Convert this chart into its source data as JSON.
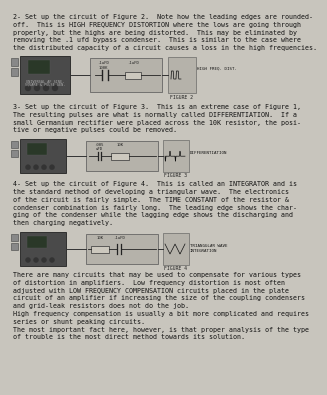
{
  "bg_color": "#c8c5bd",
  "text_color": "#111111",
  "section1_text": [
    "2- Set up the circuit of Figure 2.  Note how the leading edges are rounded-",
    "off.  This is HIGH FREQUENCY DISTORTION where the lows are going through",
    "properly, but the highs are being distorted.  This may be eliminated by",
    "removing the .1 ufd bypass condenser.  This is similar to the case where",
    "the distributed capacity of a circuit causes a loss in the high frequencies."
  ],
  "section2_text": [
    "3- Set up the circuit of Figure 3.  This is an extreme case of Figure 1,",
    "The resulting pulses are what is normally called DIFFERENTIATION.  If a",
    "small Germanium rectifier were placed across the 10K resistor, the posi-",
    "tive or negative pulses could be removed."
  ],
  "section3_text": [
    "4- Set up the circuit of Figure 4.  This is called an INTEGRATOR and is",
    "the standard method of developing a triangular wave.  The electronics",
    "of the circuit is fairly simple.  The TIME CONSTANT of the resistor &",
    "condenser combination is fairly long.  The leading edge shows the char-",
    "ging of the condenser while the lagging edge shows the discharging and",
    "then charging negatively."
  ],
  "section4_text": [
    "There are many circuits that may be used to compensate for various types",
    "of distortion in amplifiers.  Low frequency distortion is most often",
    "adjusted with LOW FREQUENCY COMPENSATION circuits placed in the plate",
    "circuit of an amplifier if increasing the size of the coupling condensers",
    "and grid-leak resistors does not do the job.",
    "High frequency compensation is usually a bit more complicated and requires",
    "series or shunt peaking circuits.",
    "The most important fact here, however, is that proper analysis of the type",
    "of trouble is the most direct method towards its solution."
  ],
  "fig2_label": "FIGURE 2",
  "fig3_label": "FIGURE 3",
  "fig4_label": "FIGURE 4",
  "fig2_output_label": "HIGH FREQ. DIST.",
  "fig3_output_label": "DIFFERENTIATION",
  "fig4_output_label": "TRIANGULAR WAVE\nINTEGRATION"
}
